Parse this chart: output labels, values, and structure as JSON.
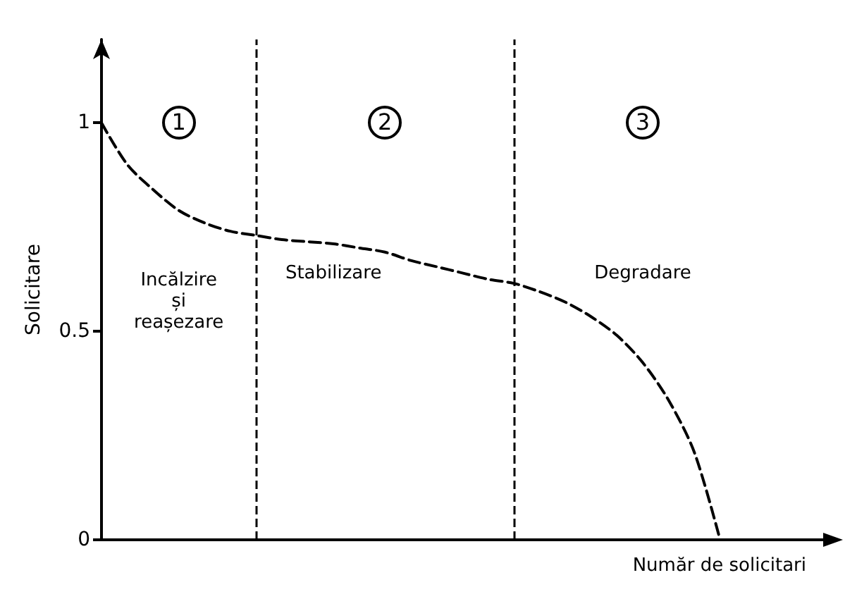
{
  "chart_data": {
    "type": "line",
    "xlabel": "Număr de solicitari",
    "ylabel": "Solicitare",
    "categories": [
      null,
      null,
      null,
      null,
      null,
      null,
      null,
      null,
      null,
      null,
      null,
      null,
      null,
      null,
      null,
      null,
      null,
      null,
      null,
      null,
      null,
      null,
      null,
      null,
      null,
      null,
      null,
      null,
      null
    ],
    "series": [
      {
        "color": "#000000",
        "values": [
          1,
          0.9,
          0.84,
          0.79,
          0.76,
          0.74,
          0.73,
          0.72,
          0.715,
          0.71,
          0.7,
          0.69,
          0.67,
          0.655,
          0.64,
          0.625,
          0.615,
          0.595,
          0.57,
          0.535,
          0.49,
          0.425,
          0.335,
          0.21,
          0,
          null,
          null,
          null,
          null
        ]
      }
    ],
    "ylim": [
      0,
      1.2
    ],
    "yticks": [
      0,
      0.5,
      1
    ],
    "tick_labels": "y",
    "marker": "none",
    "line_style": "dashed",
    "annotations": [
      "1",
      "2",
      "3",
      "Incălzire\nși\nreașezare",
      "Stabilizare",
      "Degradare"
    ]
  }
}
